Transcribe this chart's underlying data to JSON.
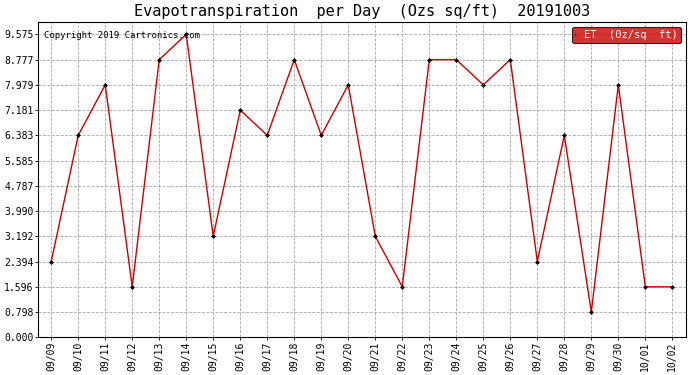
{
  "title": "Evapotranspiration  per Day  (Ozs sq/ft)  20191003",
  "copyright": "Copyright 2019 Cartronics.com",
  "legend_label": "ET  (0z/sq  ft)",
  "dates": [
    "09/09",
    "09/10",
    "09/11",
    "09/12",
    "09/13",
    "09/14",
    "09/15",
    "09/16",
    "09/17",
    "09/18",
    "09/19",
    "09/20",
    "09/21",
    "09/22",
    "09/23",
    "09/24",
    "09/25",
    "09/26",
    "09/27",
    "09/28",
    "09/29",
    "09/30",
    "10/01",
    "10/02"
  ],
  "values": [
    2.394,
    6.383,
    7.979,
    1.596,
    8.777,
    9.575,
    3.192,
    7.181,
    6.383,
    8.777,
    6.383,
    7.979,
    3.192,
    1.596,
    8.777,
    8.777,
    7.979,
    8.777,
    2.394,
    6.383,
    0.798,
    7.979,
    1.596,
    1.596
  ],
  "yticks": [
    0.0,
    0.798,
    1.596,
    2.394,
    3.192,
    3.99,
    4.787,
    5.585,
    6.383,
    7.181,
    7.979,
    8.777,
    9.575
  ],
  "ylim": [
    0.0,
    9.975
  ],
  "line_color": "#cc0000",
  "marker_color": "#000000",
  "bg_color": "#ffffff",
  "grid_color": "#aaaaaa",
  "title_fontsize": 11,
  "copyright_fontsize": 6.5,
  "tick_fontsize": 7,
  "legend_bg": "#cc0000",
  "legend_fg": "#ffffff",
  "legend_fontsize": 7.5
}
